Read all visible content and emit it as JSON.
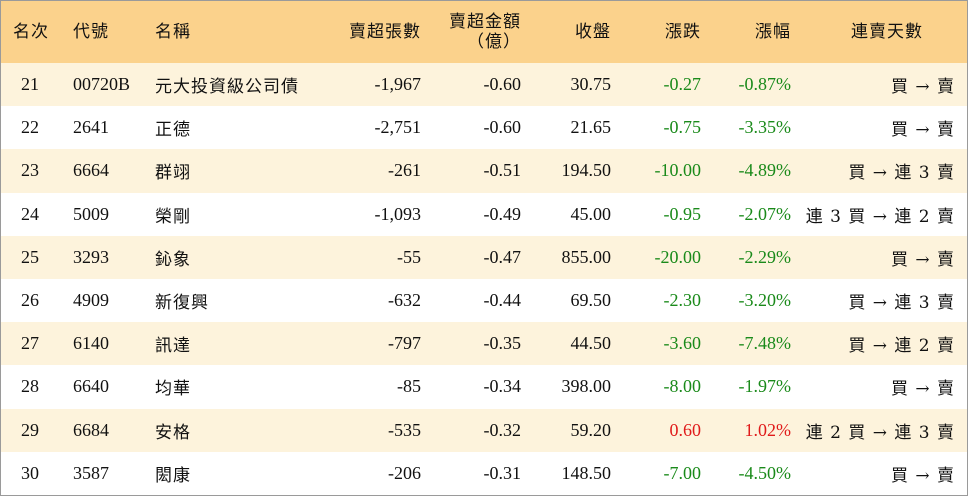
{
  "headers": {
    "rank": "名次",
    "code": "代號",
    "name": "名稱",
    "sell_vol": "賣超張數",
    "sell_amt_line1": "賣超金額",
    "sell_amt_line2": "（億）",
    "close": "收盤",
    "change": "漲跌",
    "pct": "漲幅",
    "days": "連賣天數"
  },
  "colors": {
    "header_bg": "#fbd28c",
    "odd_row_bg": "#fdf3dc",
    "up": "#e01a1a",
    "down": "#1a8a1a"
  },
  "rows": [
    {
      "rank": "21",
      "code": "00720B",
      "name": "元大投資級公司債",
      "sell_vol": "-1,967",
      "sell_amt": "-0.60",
      "close": "30.75",
      "change": "-0.27",
      "pct": "-0.87%",
      "dir": "down",
      "days": "買 → 賣"
    },
    {
      "rank": "22",
      "code": "2641",
      "name": "正德",
      "sell_vol": "-2,751",
      "sell_amt": "-0.60",
      "close": "21.65",
      "change": "-0.75",
      "pct": "-3.35%",
      "dir": "down",
      "days": "買 → 賣"
    },
    {
      "rank": "23",
      "code": "6664",
      "name": "群翊",
      "sell_vol": "-261",
      "sell_amt": "-0.51",
      "close": "194.50",
      "change": "-10.00",
      "pct": "-4.89%",
      "dir": "down",
      "days": "買 → 連 3 賣"
    },
    {
      "rank": "24",
      "code": "5009",
      "name": "榮剛",
      "sell_vol": "-1,093",
      "sell_amt": "-0.49",
      "close": "45.00",
      "change": "-0.95",
      "pct": "-2.07%",
      "dir": "down",
      "days": "連 3 買 → 連 2 賣"
    },
    {
      "rank": "25",
      "code": "3293",
      "name": "鈊象",
      "sell_vol": "-55",
      "sell_amt": "-0.47",
      "close": "855.00",
      "change": "-20.00",
      "pct": "-2.29%",
      "dir": "down",
      "days": "買 → 賣"
    },
    {
      "rank": "26",
      "code": "4909",
      "name": "新復興",
      "sell_vol": "-632",
      "sell_amt": "-0.44",
      "close": "69.50",
      "change": "-2.30",
      "pct": "-3.20%",
      "dir": "down",
      "days": "買 → 連 3 賣"
    },
    {
      "rank": "27",
      "code": "6140",
      "name": "訊達",
      "sell_vol": "-797",
      "sell_amt": "-0.35",
      "close": "44.50",
      "change": "-3.60",
      "pct": "-7.48%",
      "dir": "down",
      "days": "買 → 連 2 賣"
    },
    {
      "rank": "28",
      "code": "6640",
      "name": "均華",
      "sell_vol": "-85",
      "sell_amt": "-0.34",
      "close": "398.00",
      "change": "-8.00",
      "pct": "-1.97%",
      "dir": "down",
      "days": "買 → 賣"
    },
    {
      "rank": "29",
      "code": "6684",
      "name": "安格",
      "sell_vol": "-535",
      "sell_amt": "-0.32",
      "close": "59.20",
      "change": "0.60",
      "pct": "1.02%",
      "dir": "up",
      "days": "連 2 買 → 連 3 賣"
    },
    {
      "rank": "30",
      "code": "3587",
      "name": "閎康",
      "sell_vol": "-206",
      "sell_amt": "-0.31",
      "close": "148.50",
      "change": "-7.00",
      "pct": "-4.50%",
      "dir": "down",
      "days": "買 → 賣"
    }
  ]
}
